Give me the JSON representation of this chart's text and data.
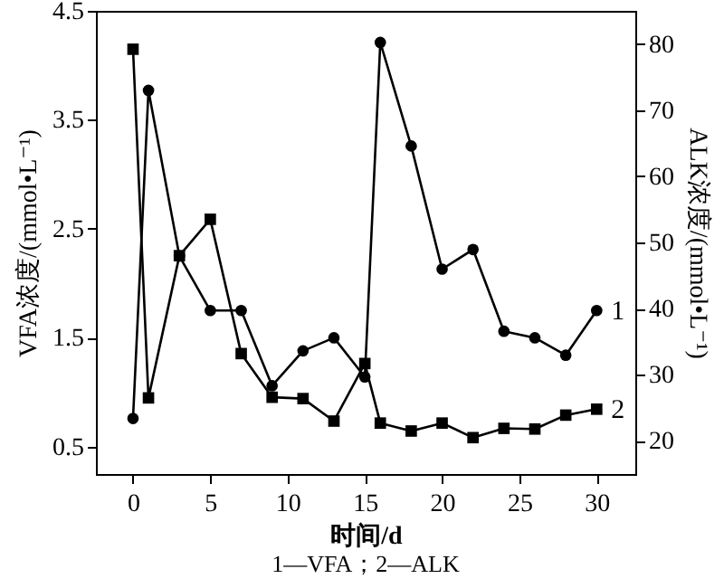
{
  "chart_data": {
    "type": "line",
    "xlabel": "时间/d",
    "ylabel": "VFA浓度/(mmol•L⁻¹)",
    "y2label": "ALK浓度/(mmol•L⁻¹)",
    "x": [
      0,
      1,
      3,
      5,
      7,
      9,
      11,
      13,
      15,
      16,
      18,
      20,
      22,
      24,
      26,
      28,
      30
    ],
    "series": [
      {
        "name": "1",
        "color": "#000000",
        "marker": "circle",
        "values": [
          0.76,
          3.77,
          2.25,
          1.75,
          1.75,
          1.06,
          1.38,
          1.5,
          1.14,
          4.21,
          3.26,
          2.13,
          2.31,
          1.56,
          1.5,
          1.34,
          1.75
        ]
      },
      {
        "name": "2",
        "color": "#000000",
        "marker": "square",
        "axis": "y2",
        "values": [
          79.2,
          26.5,
          48,
          53.5,
          33.2,
          26.6,
          26.4,
          23,
          31.7,
          22.7,
          21.5,
          22.7,
          20.5,
          21.9,
          21.8,
          23.9,
          24.8
        ]
      }
    ],
    "xlim": [
      -2.4,
      32.5
    ],
    "xticks": [
      0,
      5,
      10,
      15,
      20,
      25,
      30
    ],
    "ylim": [
      0.25,
      4.5
    ],
    "yticks": [
      0.5,
      1.5,
      2.5,
      3.5,
      4.5
    ],
    "y2lim": [
      15,
      85
    ],
    "y2ticks": [
      20,
      30,
      40,
      50,
      60,
      70,
      80
    ],
    "grid": false,
    "line_style": "solid",
    "annotations": [
      "1—VFA；2—ALK"
    ]
  }
}
